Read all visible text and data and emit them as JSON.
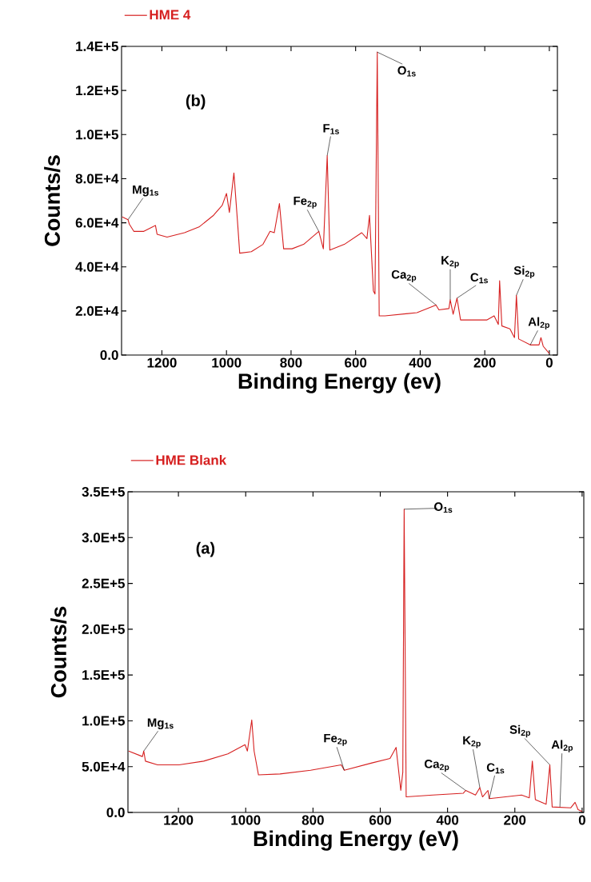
{
  "chart_data": [
    {
      "type": "line",
      "xlabel": "Binding Energy (ev)",
      "ylabel": "Counts/s",
      "legend": "top left",
      "x": [
        1323,
        1305,
        1301,
        1287,
        1256,
        1229,
        1220,
        1215,
        1184,
        1130,
        1085,
        1040,
        1013,
        1000,
        991,
        977,
        966,
        959,
        923,
        887,
        865,
        852,
        836,
        823,
        797,
        761,
        714,
        700,
        688,
        680,
        635,
        581,
        565,
        557,
        545,
        540,
        533,
        527,
        509,
        410,
        351,
        342,
        311,
        307,
        298,
        286,
        275,
        194,
        171,
        158,
        154,
        147,
        122,
        108,
        102,
        95,
        59,
        32,
        26,
        19,
        0
      ],
      "series": [
        {
          "name": "HME 4",
          "color": "#d62020",
          "values": [
            62700,
            61400,
            59400,
            56100,
            56100,
            58100,
            58800,
            54800,
            53500,
            55500,
            58100,
            63400,
            68000,
            73300,
            64700,
            82600,
            60800,
            46200,
            46900,
            50200,
            56100,
            55500,
            68700,
            48200,
            48200,
            50200,
            56100,
            48200,
            90500,
            47600,
            50200,
            55500,
            52800,
            63400,
            29100,
            27700,
            137400,
            17800,
            17800,
            19200,
            22700,
            20500,
            21100,
            25100,
            18500,
            25800,
            15900,
            15900,
            17800,
            13900,
            33700,
            13200,
            11900,
            7900,
            27100,
            7300,
            4600,
            4600,
            7900,
            4000,
            700
          ]
        }
      ],
      "xlim": [
        1325,
        -25
      ],
      "xticks": [
        1200,
        1000,
        800,
        600,
        400,
        200,
        0
      ],
      "ylim": [
        0,
        140000
      ],
      "yticks": [
        {
          "value": 0,
          "label": "0.0"
        },
        {
          "value": 20000,
          "label": "2.0E+4"
        },
        {
          "value": 40000,
          "label": "4.0E+4"
        },
        {
          "value": 60000,
          "label": "6.0E+4"
        },
        {
          "value": 80000,
          "label": "8.0E+4"
        },
        {
          "value": 100000,
          "label": "1.0E+5"
        },
        {
          "value": 120000,
          "label": "1.2E+5"
        },
        {
          "value": 140000,
          "label": "1.4E+5"
        }
      ],
      "annotations": [
        {
          "text": "Mg$_{1s}$",
          "x": 1305,
          "y": 61400
        },
        {
          "text": "Fe$_{2p}$",
          "x": 714,
          "y": 56100
        },
        {
          "text": "F$_{1s}$",
          "x": 688,
          "y": 90500
        },
        {
          "text": "O$_{1s}$",
          "x": 533,
          "y": 137400
        },
        {
          "text": "Ca$_{2p}$",
          "x": 351,
          "y": 22700
        },
        {
          "text": "K$_{2p}$",
          "x": 307,
          "y": 25100
        },
        {
          "text": "C$_{1s}$",
          "x": 286,
          "y": 25800
        },
        {
          "text": "Si$_{2p}$",
          "x": 102,
          "y": 27100
        },
        {
          "text": "Al$_{2p}$",
          "x": 59,
          "y": 4600
        },
        "(b)"
      ]
    },
    {
      "type": "line",
      "xlabel": "Binding Energy (eV)",
      "ylabel": "Counts/s",
      "legend": "top left",
      "x": [
        1348,
        1307,
        1303,
        1298,
        1262,
        1198,
        1125,
        1053,
        1002,
        995,
        982,
        975,
        962,
        898,
        807,
        716,
        707,
        625,
        571,
        553,
        539,
        533,
        529,
        523,
        444,
        353,
        346,
        317,
        304,
        296,
        280,
        276,
        180,
        157,
        148,
        139,
        107,
        96,
        89,
        34,
        21,
        12,
        0
      ],
      "series": [
        {
          "name": "HME Blank",
          "color": "#d62020",
          "values": [
            67000,
            61000,
            67000,
            56000,
            52000,
            52000,
            56000,
            64000,
            74000,
            67000,
            101000,
            67000,
            41000,
            42000,
            46000,
            52000,
            46000,
            54000,
            59000,
            71000,
            24000,
            44000,
            331000,
            17000,
            19000,
            21000,
            24000,
            19000,
            27000,
            17000,
            24000,
            15000,
            19000,
            16000,
            56000,
            14000,
            9000,
            52000,
            6000,
            5000,
            11000,
            3000,
            1000
          ]
        }
      ],
      "xlim": [
        1350,
        -5
      ],
      "xticks": [
        1200,
        1000,
        800,
        600,
        400,
        200,
        0
      ],
      "ylim": [
        0,
        350000
      ],
      "yticks": [
        {
          "value": 0,
          "label": "0.0"
        },
        {
          "value": 50000,
          "label": "5.0E+4"
        },
        {
          "value": 100000,
          "label": "1.0E+5"
        },
        {
          "value": 150000,
          "label": "1.5E+5"
        },
        {
          "value": 200000,
          "label": "2.0E+5"
        },
        {
          "value": 250000,
          "label": "2.5E+5"
        },
        {
          "value": 300000,
          "label": "3.0E+5"
        },
        {
          "value": 350000,
          "label": "3.5E+5"
        }
      ],
      "annotations": [
        {
          "text": "Mg$_{1s}$",
          "x": 1303,
          "y": 67000
        },
        {
          "text": "Fe$_{2p}$",
          "x": 707,
          "y": 46000
        },
        {
          "text": "O$_{1s}$",
          "x": 529,
          "y": 331000
        },
        {
          "text": "Ca$_{2p}$",
          "x": 346,
          "y": 24000
        },
        {
          "text": "K$_{2p}$",
          "x": 304,
          "y": 27000
        },
        {
          "text": "C$_{1s}$",
          "x": 276,
          "y": 15000
        },
        {
          "text": "Si$_{2p}$",
          "x": 96,
          "y": 52000
        },
        {
          "text": "Al$_{2p}$",
          "x": 66,
          "y": 6000
        },
        "(a)"
      ]
    }
  ]
}
